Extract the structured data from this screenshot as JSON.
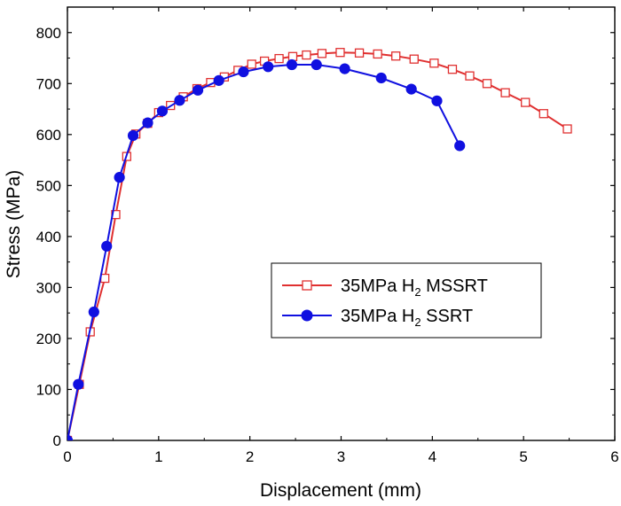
{
  "chart_data": {
    "type": "line",
    "title": "",
    "xlabel": "Displacement (mm)",
    "ylabel": "Stress (MPa)",
    "xlim": [
      0,
      6
    ],
    "ylim": [
      0,
      850
    ],
    "x_ticks": [
      0,
      1,
      2,
      3,
      4,
      5,
      6
    ],
    "y_ticks": [
      0,
      100,
      200,
      300,
      400,
      500,
      600,
      700,
      800
    ],
    "grid": false,
    "legend_position": "center-right",
    "series": [
      {
        "name_parts": [
          "35MPa H",
          "2",
          " MSSRT"
        ],
        "color": "#e03030",
        "marker": "open-square",
        "points": [
          [
            0,
            0
          ],
          [
            0.13,
            110
          ],
          [
            0.25,
            213
          ],
          [
            0.41,
            318
          ],
          [
            0.53,
            443
          ],
          [
            0.65,
            557
          ],
          [
            0.75,
            601
          ],
          [
            0.88,
            622
          ],
          [
            1.0,
            643
          ],
          [
            1.13,
            657
          ],
          [
            1.27,
            674
          ],
          [
            1.42,
            690
          ],
          [
            1.57,
            702
          ],
          [
            1.72,
            713
          ],
          [
            1.87,
            726
          ],
          [
            2.02,
            738
          ],
          [
            2.16,
            744
          ],
          [
            2.32,
            749
          ],
          [
            2.47,
            753
          ],
          [
            2.62,
            756
          ],
          [
            2.79,
            759
          ],
          [
            2.99,
            761
          ],
          [
            3.2,
            760
          ],
          [
            3.4,
            758
          ],
          [
            3.6,
            754
          ],
          [
            3.8,
            748
          ],
          [
            4.02,
            740
          ],
          [
            4.22,
            728
          ],
          [
            4.41,
            715
          ],
          [
            4.6,
            700
          ],
          [
            4.8,
            682
          ],
          [
            5.02,
            663
          ],
          [
            5.22,
            641
          ],
          [
            5.48,
            611
          ]
        ]
      },
      {
        "name_parts": [
          "35MPa H",
          "2",
          " SSRT"
        ],
        "color": "#1010e0",
        "marker": "filled-circle",
        "points": [
          [
            0,
            0
          ],
          [
            0.12,
            110
          ],
          [
            0.29,
            252
          ],
          [
            0.43,
            381
          ],
          [
            0.57,
            516
          ],
          [
            0.72,
            598
          ],
          [
            0.88,
            623
          ],
          [
            1.04,
            646
          ],
          [
            1.23,
            667
          ],
          [
            1.43,
            687
          ],
          [
            1.66,
            706
          ],
          [
            1.93,
            723
          ],
          [
            2.2,
            733
          ],
          [
            2.46,
            737
          ],
          [
            2.73,
            737
          ],
          [
            3.04,
            729
          ],
          [
            3.44,
            711
          ],
          [
            3.77,
            689
          ],
          [
            4.05,
            666
          ],
          [
            4.3,
            578
          ]
        ]
      }
    ]
  }
}
